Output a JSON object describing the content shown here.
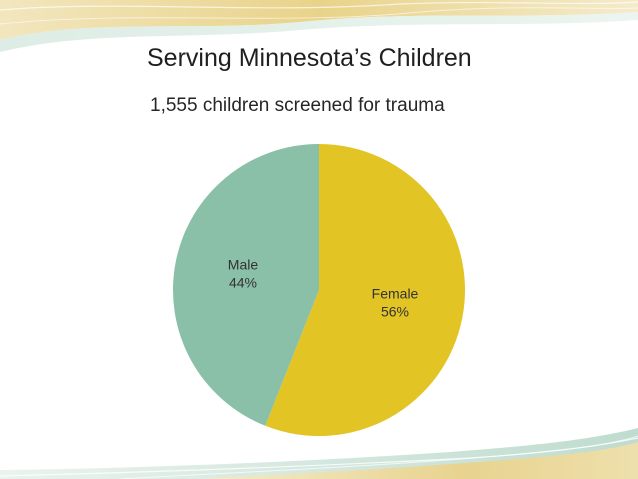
{
  "slide": {
    "title": "Serving Minnesota’s Children",
    "subtitle": "1,555 children screened for trauma"
  },
  "colors": {
    "female": "#E3C425",
    "male": "#8ABFA8",
    "wave_gold": "#E9D590",
    "wave_green": "#B9D9CC"
  },
  "chart_data": {
    "type": "pie",
    "title": "",
    "categories": [
      "Female",
      "Male"
    ],
    "values": [
      56,
      44
    ],
    "labels": [
      {
        "name": "Female",
        "pct": "56%"
      },
      {
        "name": "Male",
        "pct": "44%"
      }
    ],
    "legend": "none"
  }
}
